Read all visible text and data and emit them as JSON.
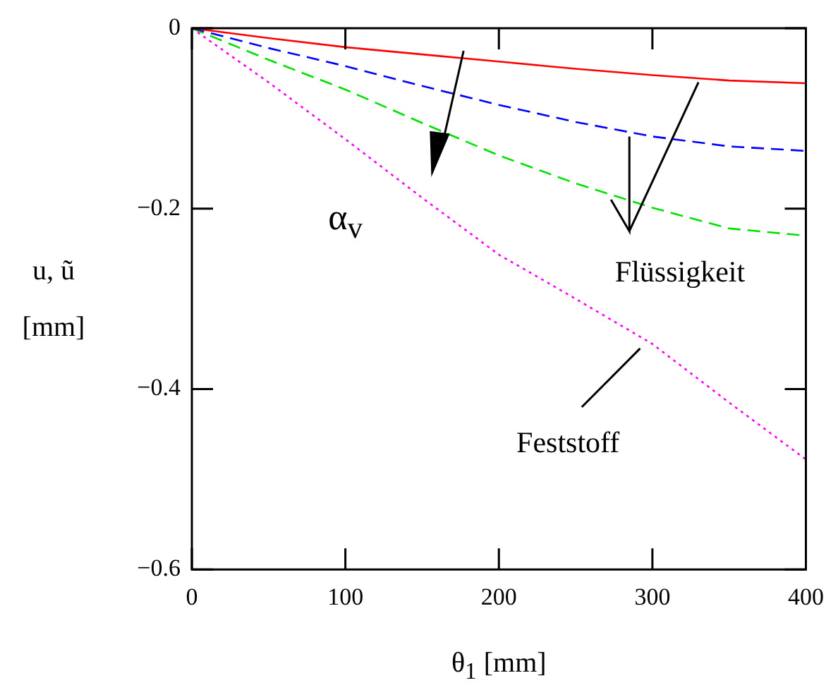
{
  "chart_data": {
    "type": "line",
    "xlabel": "θ$_{1}$ [mm]",
    "ylabel": "u, ũ [mm]",
    "xlim": [
      0,
      400
    ],
    "xticks": [
      0,
      100,
      200,
      300,
      400
    ],
    "ylim": [
      -0.6,
      0
    ],
    "yticks": [
      -0.6,
      -0.4,
      -0.2,
      0
    ],
    "grid": false,
    "legend": false,
    "marker": "none",
    "x": [
      0,
      50,
      100,
      150,
      200,
      250,
      300,
      350,
      400
    ],
    "series": [
      {
        "color": "#ff0000",
        "line_style": "solid",
        "values": [
          0,
          -0.011,
          -0.021,
          -0.029,
          -0.037,
          -0.045,
          -0.052,
          -0.058,
          -0.061
        ]
      },
      {
        "color": "#0000ff",
        "line_style": "dashed",
        "values": [
          0,
          -0.022,
          -0.042,
          -0.064,
          -0.085,
          -0.104,
          -0.12,
          -0.131,
          -0.136
        ]
      },
      {
        "color": "#00e000",
        "line_style": "dashed",
        "values": [
          0,
          -0.035,
          -0.068,
          -0.105,
          -0.141,
          -0.172,
          -0.199,
          -0.222,
          -0.23
        ]
      },
      {
        "color": "#ff00ff",
        "line_style": "dotted",
        "values": [
          0,
          -0.06,
          -0.123,
          -0.188,
          -0.251,
          -0.3,
          -0.35,
          -0.415,
          -0.478
        ]
      }
    ],
    "annotations": [
      "α$_{v}$",
      {
        "text": "Flüssigkeit",
        "x": 330,
        "y": -0.06
      },
      "Feststoff"
    ]
  }
}
